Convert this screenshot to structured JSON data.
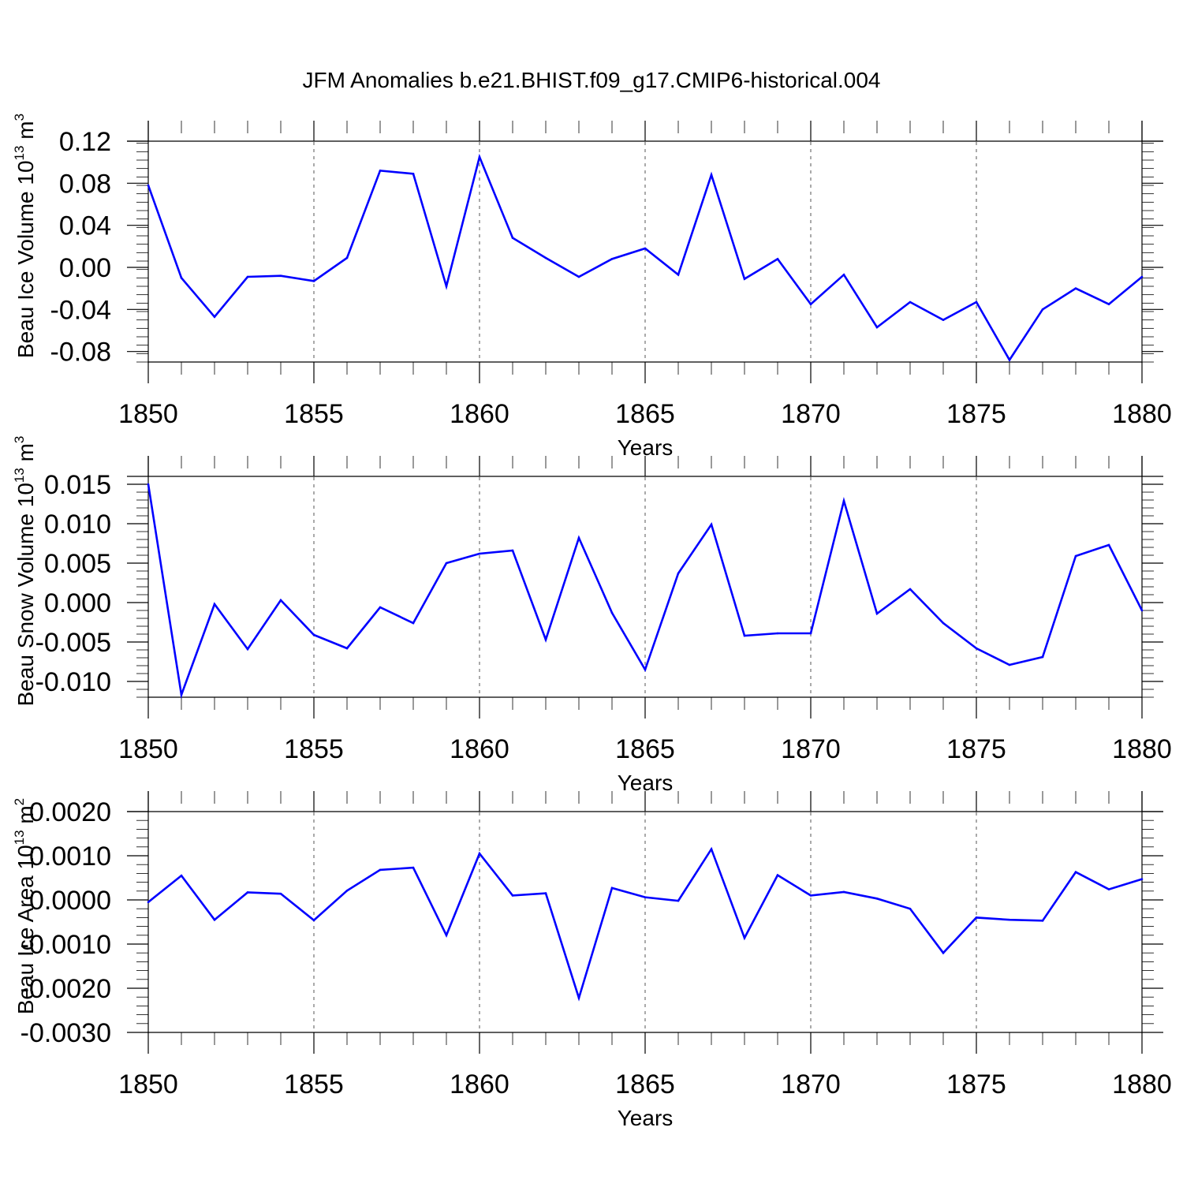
{
  "title": "JFM Anomalies b.e21.BHIST.f09_g17.CMIP6-historical.004",
  "colors": {
    "line": "#0000ff",
    "axis": "#000000",
    "grid": "#555555"
  },
  "chart_data": [
    {
      "type": "line",
      "ylabel": "Beau Ice Volume 10",
      "ylabel_sup": "13",
      "ylabel_unit": "m",
      "ylabel_unit_sup": "3",
      "xlabel": "Years",
      "xlim": [
        1850,
        1880
      ],
      "ylim": [
        -0.09,
        0.12
      ],
      "xticks": [
        "1850",
        "1855",
        "1860",
        "1865",
        "1870",
        "1875",
        "1880"
      ],
      "yticks": [
        "-0.08",
        "-0.04",
        "0.00",
        "0.04",
        "0.08",
        "0.12"
      ],
      "series": [
        {
          "name": "Beau Ice Volume",
          "x": [
            1850,
            1851,
            1852,
            1853,
            1854,
            1855,
            1856,
            1857,
            1858,
            1859,
            1860,
            1861,
            1862,
            1863,
            1864,
            1865,
            1866,
            1867,
            1868,
            1869,
            1870,
            1871,
            1872,
            1873,
            1874,
            1875,
            1876,
            1877,
            1878,
            1879,
            1880
          ],
          "values": [
            0.078,
            -0.01,
            -0.047,
            -0.009,
            -0.008,
            -0.013,
            0.009,
            0.092,
            0.089,
            -0.018,
            0.105,
            0.028,
            0.009,
            -0.009,
            0.008,
            0.018,
            -0.007,
            0.088,
            -0.011,
            0.008,
            -0.035,
            -0.007,
            -0.057,
            -0.033,
            -0.05,
            -0.033,
            -0.088,
            -0.04,
            -0.02,
            -0.035,
            -0.009
          ]
        }
      ]
    },
    {
      "type": "line",
      "ylabel": "Beau Snow Volume 10",
      "ylabel_sup": "13",
      "ylabel_unit": "m",
      "ylabel_unit_sup": "3",
      "xlabel": "Years",
      "xlim": [
        1850,
        1880
      ],
      "ylim": [
        -0.012,
        0.016
      ],
      "xticks": [
        "1850",
        "1855",
        "1860",
        "1865",
        "1870",
        "1875",
        "1880"
      ],
      "yticks": [
        "-0.010",
        "-0.005",
        "0.000",
        "0.005",
        "0.010",
        "0.015"
      ],
      "series": [
        {
          "name": "Beau Snow Volume",
          "x": [
            1850,
            1851,
            1852,
            1853,
            1854,
            1855,
            1856,
            1857,
            1858,
            1859,
            1860,
            1861,
            1862,
            1863,
            1864,
            1865,
            1866,
            1867,
            1868,
            1869,
            1870,
            1871,
            1872,
            1873,
            1874,
            1875,
            1876,
            1877,
            1878,
            1879,
            1880
          ],
          "values": [
            0.015,
            -0.0117,
            -0.0002,
            -0.0059,
            0.0003,
            -0.0041,
            -0.0058,
            -0.0006,
            -0.0026,
            0.005,
            0.0062,
            0.0066,
            -0.0047,
            0.0082,
            -0.0013,
            -0.0085,
            0.0037,
            0.0099,
            -0.0042,
            -0.0039,
            -0.0039,
            0.0129,
            -0.0014,
            0.0017,
            -0.0026,
            -0.0058,
            -0.0079,
            -0.0069,
            0.0059,
            0.0073,
            -0.001
          ]
        }
      ]
    },
    {
      "type": "line",
      "ylabel": "Beau Ice Area 10",
      "ylabel_sup": "13",
      "ylabel_unit": "m",
      "ylabel_unit_sup": "2",
      "xlabel": "Years",
      "xlim": [
        1850,
        1880
      ],
      "ylim": [
        -0.003,
        0.002
      ],
      "xticks": [
        "1850",
        "1855",
        "1860",
        "1865",
        "1870",
        "1875",
        "1880"
      ],
      "yticks": [
        "-0.0030",
        "-0.0020",
        "-0.0010",
        "0.0000",
        "0.0010",
        "0.0020"
      ],
      "series": [
        {
          "name": "Beau Ice Area",
          "x": [
            1850,
            1851,
            1852,
            1853,
            1854,
            1855,
            1856,
            1857,
            1858,
            1859,
            1860,
            1861,
            1862,
            1863,
            1864,
            1865,
            1866,
            1867,
            1868,
            1869,
            1870,
            1871,
            1872,
            1873,
            1874,
            1875,
            1876,
            1877,
            1878,
            1879,
            1880
          ],
          "values": [
            -5e-05,
            0.00055,
            -0.00045,
            0.00017,
            0.00014,
            -0.00046,
            0.00021,
            0.00068,
            0.00073,
            -0.0008,
            0.00105,
            0.0001,
            0.00015,
            -0.00222,
            0.00027,
            6e-05,
            -2e-05,
            0.00115,
            -0.00086,
            0.00056,
            0.0001,
            0.00018,
            3e-05,
            -0.0002,
            -0.0012,
            -0.0004,
            -0.00045,
            -0.00047,
            0.00063,
            0.00024,
            0.00047
          ]
        }
      ]
    }
  ]
}
